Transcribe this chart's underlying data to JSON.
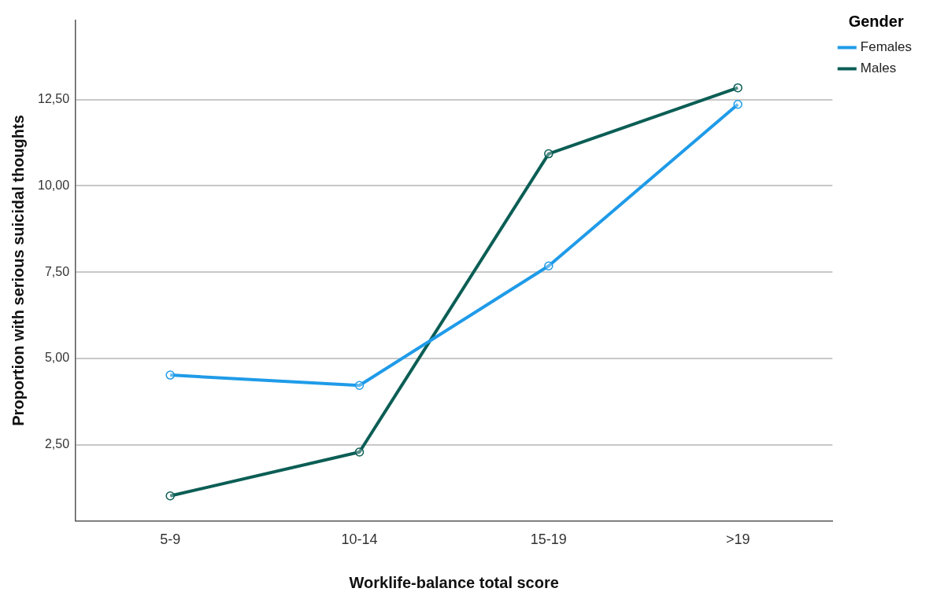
{
  "chart_data": {
    "type": "line",
    "xlabel": "Worklife-balance total score",
    "ylabel": "Proportion with serious suicidal thoughts",
    "legend_title": "Gender",
    "categories": [
      "5-9",
      "10-14",
      "15-19",
      ">19"
    ],
    "series": [
      {
        "name": "Females",
        "color": "#1f9be8",
        "values": [
          4.52,
          4.22,
          7.68,
          12.36
        ]
      },
      {
        "name": "Males",
        "color": "#0b5e55",
        "values": [
          1.02,
          2.29,
          10.93,
          12.84
        ]
      }
    ],
    "ylim": [
      0.3,
      14.8
    ],
    "yticks": [
      {
        "value": 2.5,
        "label": "2,50"
      },
      {
        "value": 5,
        "label": "5,00"
      },
      {
        "value": 7.5,
        "label": "7,50"
      },
      {
        "value": 10,
        "label": "10,00"
      },
      {
        "value": 12.5,
        "label": "12,50"
      }
    ],
    "grid": "y",
    "legend": "top right",
    "marker": "circle",
    "line_style": "solid"
  }
}
